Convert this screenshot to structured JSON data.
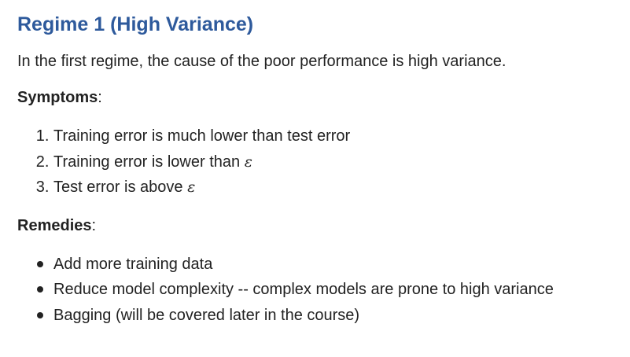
{
  "title": "Regime 1 (High Variance)",
  "intro": "In the first regime, the cause of the poor performance is high variance.",
  "symptoms": {
    "heading": "Symptoms",
    "suffix": ":",
    "items": [
      {
        "text": "Training error is much lower than test error",
        "symbol": ""
      },
      {
        "text": "Training error is lower than ",
        "symbol": "ε"
      },
      {
        "text": "Test error is above ",
        "symbol": "ε"
      }
    ]
  },
  "remedies": {
    "heading": "Remedies",
    "suffix": ":",
    "items": [
      "Add more training data",
      "Reduce model complexity -- complex models are prone to high variance",
      "Bagging (will be covered later in the course)"
    ]
  }
}
